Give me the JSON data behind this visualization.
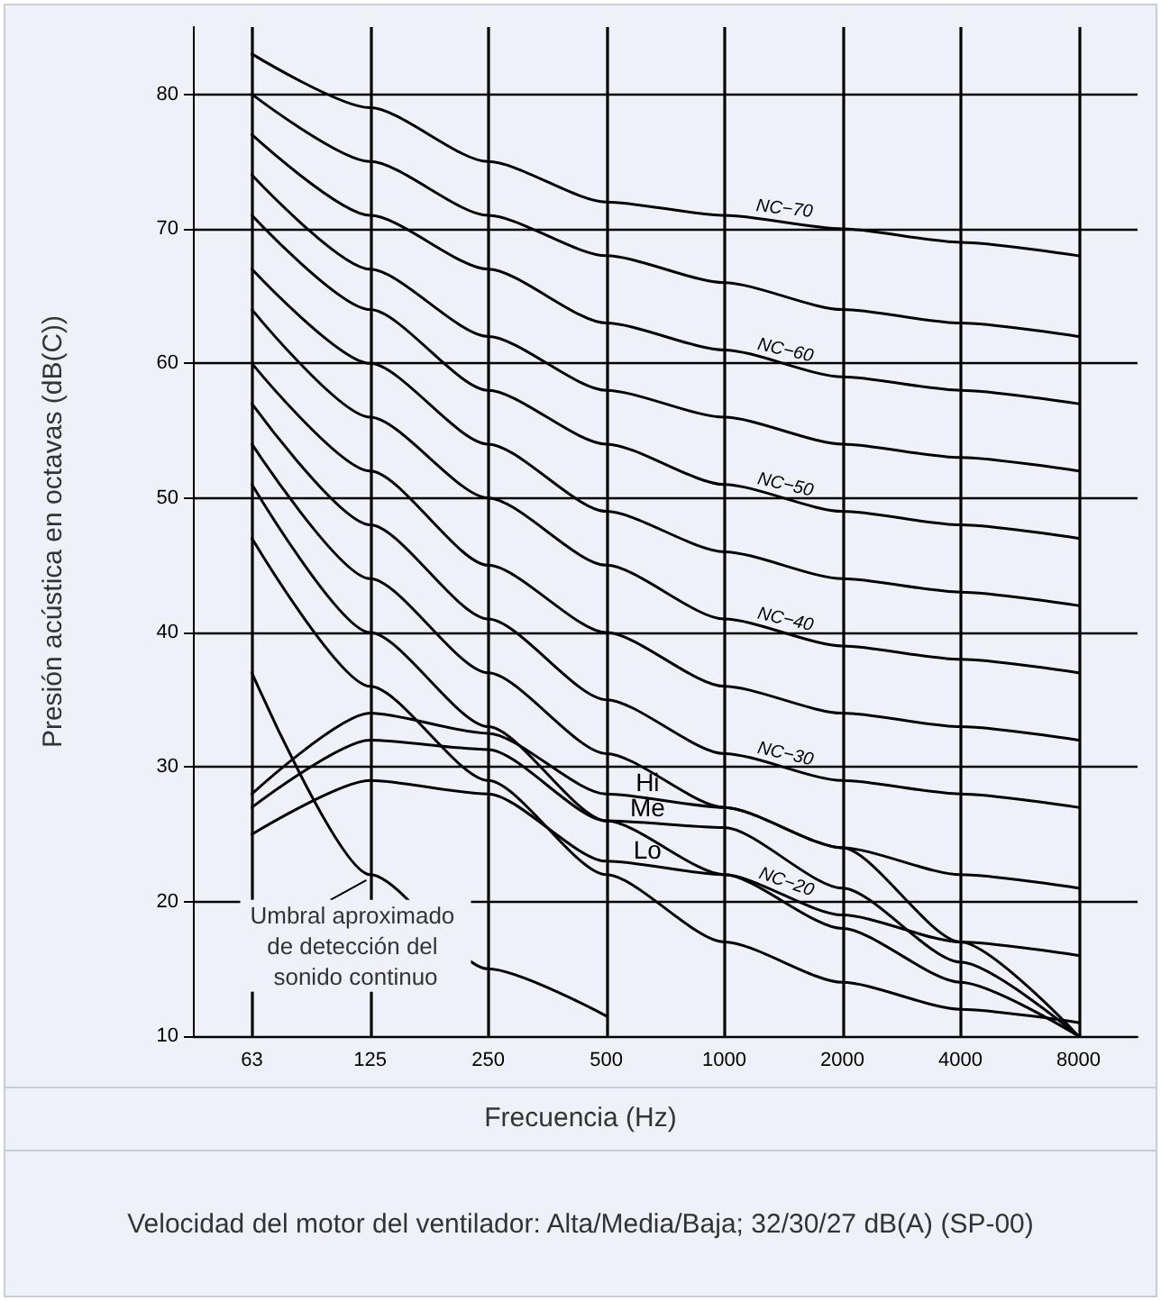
{
  "chart_data": {
    "type": "line",
    "xlabel": "Frecuencia (Hz)",
    "ylabel": "Presión acústica en octavas (dB(C))",
    "categories": [
      "63",
      "125",
      "250",
      "500",
      "1000",
      "2000",
      "4000",
      "8000"
    ],
    "ylim": [
      10,
      85
    ],
    "yticks": [
      10,
      20,
      30,
      40,
      50,
      60,
      70,
      80
    ],
    "grid": true,
    "legend": false,
    "marker": "none",
    "series": [
      {
        "name": "NC−70",
        "color": "#000000",
        "values": [
          83,
          79,
          75,
          72,
          71,
          70,
          69,
          68
        ]
      },
      {
        "color": "#000000",
        "values": [
          80,
          75,
          71,
          68,
          66,
          64,
          63,
          62
        ]
      },
      {
        "name": "NC−60",
        "color": "#000000",
        "values": [
          77,
          71,
          67,
          63,
          61,
          59,
          58,
          57
        ]
      },
      {
        "color": "#000000",
        "values": [
          74,
          67,
          62,
          58,
          56,
          54,
          53,
          52
        ]
      },
      {
        "name": "NC−50",
        "color": "#000000",
        "values": [
          71,
          64,
          58,
          54,
          51,
          49,
          48,
          47
        ]
      },
      {
        "color": "#000000",
        "values": [
          67,
          60,
          54,
          49,
          46,
          44,
          43,
          42
        ]
      },
      {
        "name": "NC−40",
        "color": "#000000",
        "values": [
          64,
          56,
          50,
          45,
          41,
          39,
          38,
          37
        ]
      },
      {
        "color": "#000000",
        "values": [
          60,
          52,
          45,
          40,
          36,
          34,
          33,
          32
        ]
      },
      {
        "name": "NC−30",
        "color": "#000000",
        "values": [
          57,
          48,
          41,
          35,
          31,
          29,
          28,
          27
        ]
      },
      {
        "color": "#000000",
        "values": [
          54,
          44,
          37,
          31,
          27,
          24,
          22,
          21
        ]
      },
      {
        "name": "NC−20",
        "color": "#000000",
        "values": [
          51,
          40,
          33,
          26,
          22,
          19,
          17,
          16
        ]
      },
      {
        "color": "#000000",
        "values": [
          47,
          36,
          29,
          22,
          17,
          14,
          12,
          11
        ]
      },
      {
        "color": "#000000",
        "values": [
          37,
          22,
          15,
          11.5,
          null,
          null,
          null,
          null
        ]
      },
      {
        "name": "Hi",
        "color": "#000000",
        "values": [
          28,
          34,
          32.5,
          28,
          27,
          24,
          17,
          10
        ]
      },
      {
        "name": "Me",
        "color": "#000000",
        "values": [
          27,
          32,
          31.3,
          26,
          25.5,
          21,
          15.5,
          10
        ]
      },
      {
        "name": "Lo",
        "color": "#000000",
        "values": [
          25,
          29,
          28,
          23,
          22,
          18,
          14,
          10
        ]
      }
    ],
    "annotations": [
      {
        "text": "Umbral aproximado de detección del sonido continuo",
        "x": "125",
        "y": 22
      },
      "Velocidad del motor del ventilador: Alta/Media/Baja; 32/30/27 dB(A) (SP-00)"
    ]
  }
}
